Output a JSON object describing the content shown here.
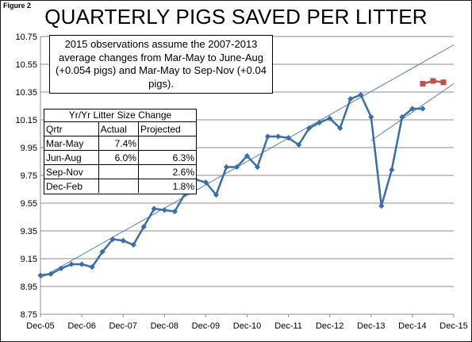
{
  "figure_label": "Figure 2",
  "chart_data": {
    "type": "line",
    "title": "QUARTERLY PIGS SAVED PER LITTER",
    "xlabel": "",
    "ylabel": "",
    "ylim": [
      8.75,
      10.75
    ],
    "grid": "horizontal",
    "y_ticks": [
      "10.75",
      "10.55",
      "10.35",
      "10.15",
      "9.95",
      "9.75",
      "9.55",
      "9.35",
      "9.15",
      "8.95",
      "8.75"
    ],
    "x_ticks": [
      "Dec-05",
      "Dec-06",
      "Dec-07",
      "Dec-08",
      "Dec-09",
      "Dec-10",
      "Dec-11",
      "Dec-12",
      "Dec-13",
      "Dec-14",
      "Dec-15"
    ],
    "series": [
      {
        "color": "#3a6ea8",
        "x": [
          "Dec-05",
          "Mar-06",
          "Jun-06",
          "Sep-06",
          "Dec-06",
          "Mar-07",
          "Jun-07",
          "Sep-07",
          "Dec-07",
          "Mar-08",
          "Jun-08",
          "Sep-08",
          "Dec-08",
          "Mar-09",
          "Jun-09",
          "Sep-09",
          "Dec-09",
          "Mar-10",
          "Jun-10",
          "Sep-10",
          "Dec-10",
          "Mar-11",
          "Jun-11",
          "Sep-11",
          "Dec-11",
          "Mar-12",
          "Jun-12",
          "Sep-12",
          "Dec-12",
          "Mar-13",
          "Jun-13",
          "Sep-13",
          "Dec-13",
          "Mar-14",
          "Jun-14",
          "Sep-14",
          "Dec-14",
          "Mar-15"
        ],
        "values": [
          9.03,
          9.04,
          9.08,
          9.11,
          9.11,
          9.09,
          9.2,
          9.29,
          9.28,
          9.25,
          9.38,
          9.51,
          9.5,
          9.49,
          9.62,
          9.72,
          9.7,
          9.61,
          9.81,
          9.81,
          9.89,
          9.81,
          10.03,
          10.03,
          10.02,
          9.97,
          10.09,
          10.13,
          10.16,
          10.09,
          10.3,
          10.33,
          10.17,
          9.53,
          9.79,
          10.17,
          10.23,
          10.23
        ]
      },
      {
        "color": "#c0504d",
        "x": [
          "Mar-15",
          "Jun-15",
          "Sep-15"
        ],
        "values": [
          10.41,
          10.43,
          10.42
        ]
      }
    ],
    "trendlines": [
      {
        "color": "#4f81bd",
        "from": {
          "x": "Dec-05",
          "y": 9.01
        },
        "to": {
          "x": "Dec-15",
          "y": 10.69
        }
      },
      {
        "color": "#4f81bd",
        "from": {
          "x": "Dec-13",
          "y": 10.0
        },
        "to": {
          "x": "Dec-15",
          "y": 10.41
        }
      }
    ]
  },
  "note": "2015 observations assume the 2007-2013 average changes from Mar-May to June-Aug (+0.054 pigs) and Mar-May to Sep-Nov (+0.04 pigs).",
  "table": {
    "title": "Yr/Yr Litter Size Change",
    "headers": [
      "Qrtr",
      "Actual",
      "Projected"
    ],
    "rows": [
      [
        "Mar-May",
        "7.4%",
        ""
      ],
      [
        "Jun-Aug",
        "6.0%",
        "6.3%"
      ],
      [
        "Sep-Nov",
        "",
        "2.6%"
      ],
      [
        "Dec-Feb",
        "",
        "1.8%"
      ]
    ]
  }
}
